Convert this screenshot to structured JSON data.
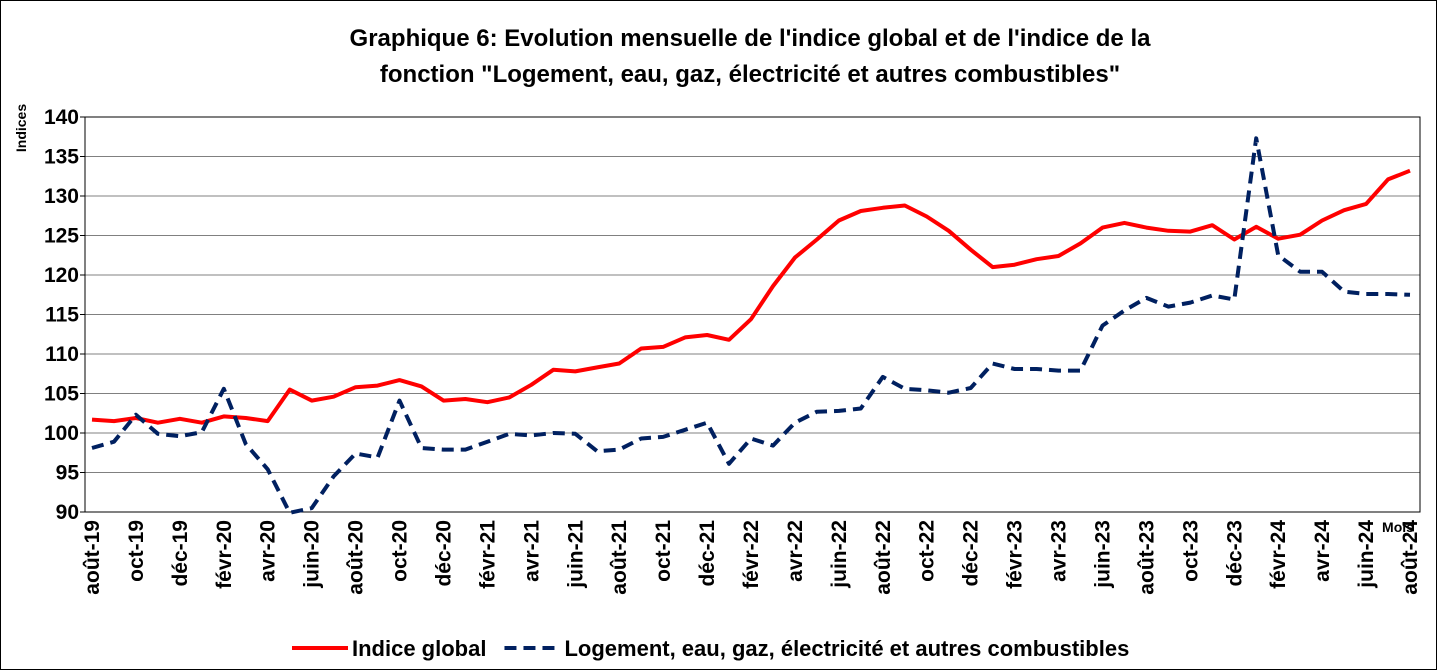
{
  "chart_data": {
    "type": "line",
    "title": [
      "Graphique 6: Evolution mensuelle de l'indice global et de l'indice de la",
      "fonction  \"Logement, eau, gaz, électricité et autres combustibles\""
    ],
    "y_label": "Indices",
    "x_label": "Mois",
    "categories": [
      "août-19",
      null,
      "oct-19",
      null,
      "déc-19",
      null,
      "févr-20",
      null,
      "avr-20",
      null,
      "juin-20",
      null,
      "août-20",
      null,
      "oct-20",
      null,
      "déc-20",
      null,
      "févr-21",
      null,
      "avr-21",
      null,
      "juin-21",
      null,
      "août-21",
      null,
      "oct-21",
      null,
      "déc-21",
      null,
      "févr-22",
      null,
      "avr-22",
      null,
      "juin-22",
      null,
      "août-22",
      null,
      "oct-22",
      null,
      "déc-22",
      null,
      "févr-23",
      null,
      "avr-23",
      null,
      "juin-23",
      null,
      "août-23",
      null,
      "oct-23",
      null,
      "déc-23",
      null,
      "févr-24",
      null,
      "avr-24",
      null,
      "juin-24",
      null,
      "août-24"
    ],
    "series": [
      {
        "name": "Indice global",
        "color": "#ff0000",
        "dashed": false,
        "values": [
          101.7,
          101.5,
          101.9,
          101.3,
          101.8,
          101.3,
          102.1,
          101.9,
          101.5,
          105.5,
          104.1,
          104.6,
          105.8,
          106.0,
          106.7,
          105.9,
          104.1,
          104.3,
          103.9,
          104.5,
          106.1,
          108.0,
          107.8,
          108.3,
          108.8,
          110.7,
          110.9,
          112.1,
          112.4,
          111.8,
          114.4,
          118.6,
          122.2,
          124.5,
          126.9,
          128.1,
          128.5,
          128.8,
          127.4,
          125.6,
          123.2,
          121.0,
          121.3,
          122.0,
          122.4,
          124.0,
          126.0,
          126.6,
          126.0,
          125.6,
          125.5,
          126.3,
          124.5,
          126.1,
          124.6,
          125.1,
          126.9,
          128.2,
          129.0,
          132.1,
          133.2
        ]
      },
      {
        "name": "Logement, eau, gaz, électricité et autres combustibles",
        "color": "#002060",
        "dashed": true,
        "values": [
          98.1,
          98.9,
          102.3,
          99.9,
          99.6,
          100.1,
          105.6,
          98.6,
          95.4,
          89.9,
          90.5,
          94.5,
          97.4,
          96.9,
          104.1,
          98.1,
          97.9,
          97.9,
          98.9,
          99.9,
          99.7,
          100.0,
          99.9,
          97.7,
          97.9,
          99.3,
          99.5,
          100.4,
          101.3,
          96.1,
          99.3,
          98.4,
          101.3,
          102.7,
          102.8,
          103.1,
          107.1,
          105.6,
          105.4,
          105.1,
          105.7,
          108.8,
          108.1,
          108.1,
          107.9,
          107.9,
          113.6,
          115.5,
          117.1,
          116.0,
          116.5,
          117.4,
          116.9,
          137.3,
          122.5,
          120.4,
          120.4,
          117.9,
          117.6,
          117.6,
          117.5
        ]
      }
    ],
    "ylim": [
      90,
      140
    ],
    "yticks": [
      90,
      95,
      100,
      105,
      110,
      115,
      120,
      125,
      130,
      135,
      140
    ],
    "grid": true,
    "legend": "bottom"
  }
}
